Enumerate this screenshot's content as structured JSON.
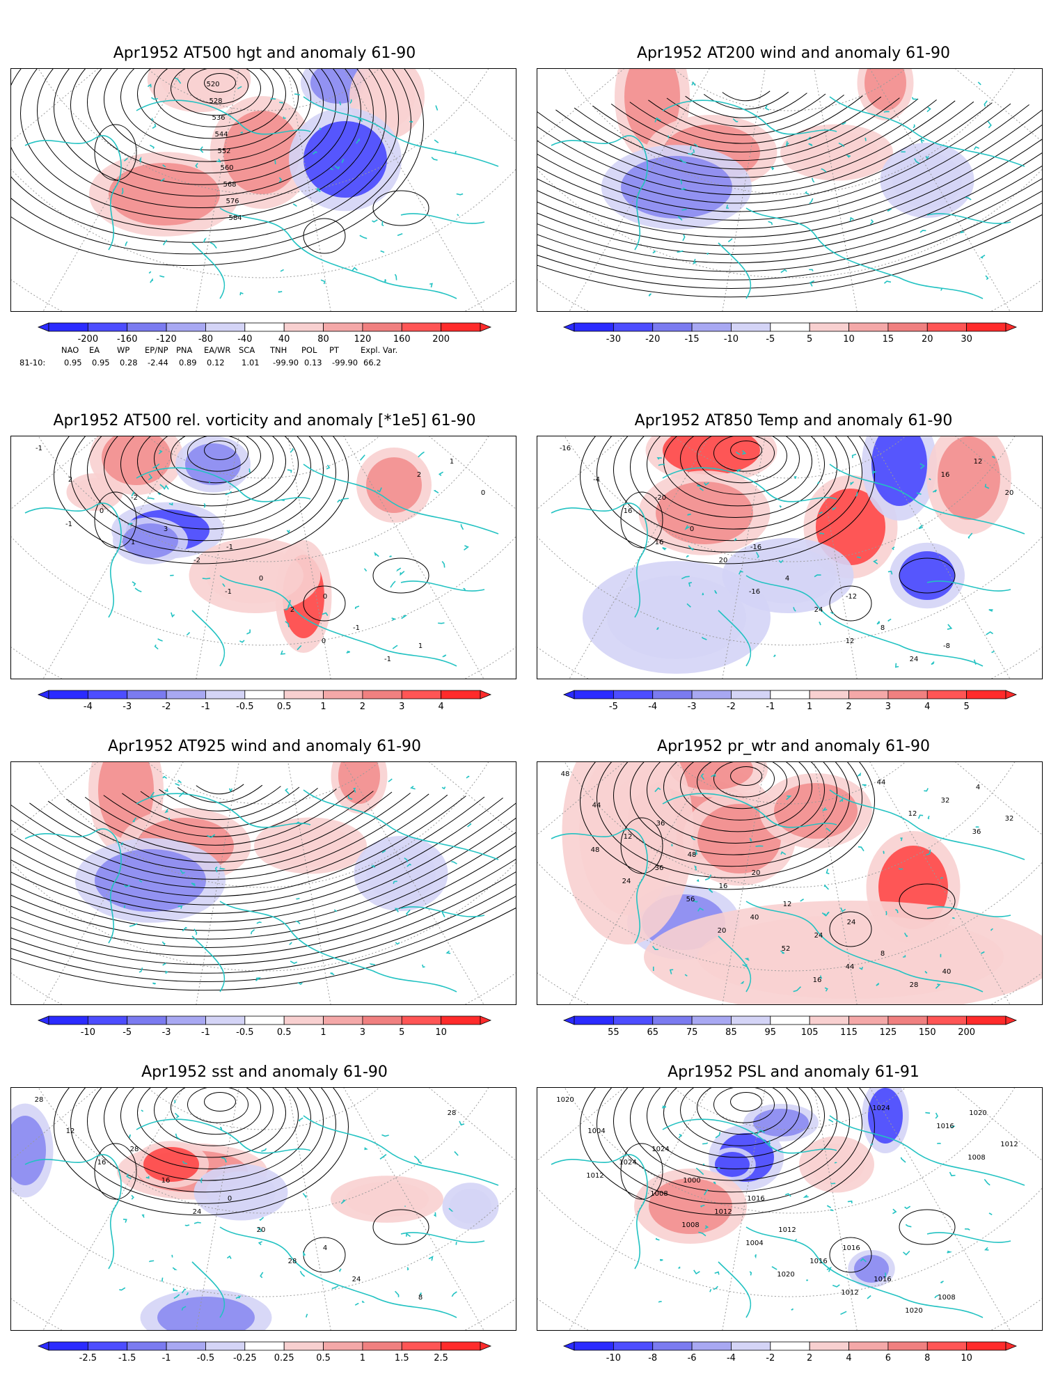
{
  "colors": {
    "coast": "#22c2c2",
    "contour": "#000000",
    "grid": "#9a9a9a",
    "neg_strong": "#2b2bff",
    "neg_mid": "#7b7bf0",
    "neg_light": "#d4d4f6",
    "pos_light": "#f8d0d0",
    "pos_mid": "#f08080",
    "pos_strong": "#ff2b2b"
  },
  "panels": [
    {
      "id": "p1",
      "title": "Apr1952 AT500 hgt and anomaly 61-90",
      "style": "hgt",
      "contour_labels": [
        "520",
        "528",
        "536",
        "544",
        "552",
        "560",
        "568",
        "576",
        "584"
      ],
      "colorbar": [
        "-200",
        "-160",
        "-120",
        "-80",
        "-40",
        "40",
        "80",
        "120",
        "160",
        "200"
      ],
      "teleconnection": {
        "headers": [
          "NAO",
          "EA",
          "WP",
          "EP/NP",
          "PNA",
          "EA/WR",
          "SCA",
          "TNH",
          "POL",
          "PT",
          "Expl. Var."
        ],
        "row_label": "81-10:",
        "values": [
          "0.95",
          "0.95",
          "0.28",
          "-2.44",
          "0.89",
          "0.12",
          "1.01",
          "-99.90",
          "0.13",
          "-99.90",
          "66.2"
        ]
      }
    },
    {
      "id": "p2",
      "title": "Apr1952 AT200 wind and anomaly 61-90",
      "style": "wind",
      "contour_labels": [],
      "colorbar": [
        "-30",
        "-20",
        "-15",
        "-10",
        "-5",
        "5",
        "10",
        "15",
        "20",
        "30"
      ]
    },
    {
      "id": "p3",
      "title": "Apr1952 AT500 rel. vorticity and anomaly [*1e5] 61-90",
      "style": "vort",
      "contour_labels": [
        "-1",
        "-2",
        "-1",
        "0",
        "1",
        "2",
        "3",
        "0",
        "-1",
        "1",
        "0",
        "-2",
        "2",
        "-1",
        "0",
        "1",
        "-1",
        "0",
        "2",
        "-1"
      ],
      "colorbar": [
        "-4",
        "-3",
        "-2",
        "-1",
        "-0.5",
        "0.5",
        "1",
        "2",
        "3",
        "4"
      ]
    },
    {
      "id": "p4",
      "title": "Apr1952 AT850 Temp and anomaly 61-90",
      "style": "temp",
      "contour_labels": [
        "-16",
        "-20",
        "-16",
        "-12",
        "-8",
        "-4",
        "0",
        "4",
        "8",
        "12",
        "16",
        "20",
        "24",
        "24",
        "20",
        "16",
        "-16",
        "12",
        "16"
      ],
      "colorbar": [
        "-5",
        "-4",
        "-3",
        "-2",
        "-1",
        "1",
        "2",
        "3",
        "4",
        "5"
      ]
    },
    {
      "id": "p5",
      "title": "Apr1952 AT925 wind and anomaly 61-90",
      "style": "wind",
      "contour_labels": [],
      "colorbar": [
        "-10",
        "-5",
        "-3",
        "-1",
        "-0.5",
        "0.5",
        "1",
        "3",
        "5",
        "10"
      ]
    },
    {
      "id": "p6",
      "title": "Apr1952 pr_wtr and anomaly 61-90",
      "style": "prwtr",
      "contour_labels": [
        "48",
        "36",
        "20",
        "24",
        "40",
        "44",
        "48",
        "12",
        "8",
        "4",
        "12",
        "16",
        "24",
        "28",
        "32",
        "36",
        "40",
        "44",
        "32",
        "48",
        "56",
        "52",
        "44",
        "36",
        "24",
        "20",
        "16",
        "12"
      ],
      "colorbar": [
        "55",
        "65",
        "75",
        "85",
        "95",
        "105",
        "115",
        "125",
        "150",
        "200"
      ]
    },
    {
      "id": "p7",
      "title": "Apr1952 sst and anomaly 61-90",
      "style": "sst",
      "contour_labels": [
        "28",
        "28",
        "0",
        "4",
        "8",
        "12",
        "16",
        "20",
        "24",
        "28",
        "16",
        "24",
        "28"
      ],
      "colorbar": [
        "-2.5",
        "-1.5",
        "-1",
        "-0.5",
        "-0.25",
        "0.25",
        "0.5",
        "1",
        "1.5",
        "2.5"
      ]
    },
    {
      "id": "p8",
      "title": "Apr1952 PSL and anomaly 61-91",
      "style": "psl",
      "contour_labels": [
        "1020",
        "1024",
        "1016",
        "1016",
        "1008",
        "1004",
        "1000",
        "1012",
        "1016",
        "1020",
        "1024",
        "1012",
        "1016",
        "1020",
        "1012",
        "1008",
        "1004",
        "1012",
        "1016",
        "1012",
        "1008",
        "1020",
        "1024",
        "1008"
      ],
      "colorbar": [
        "-10",
        "-8",
        "-6",
        "-4",
        "-2",
        "2",
        "4",
        "6",
        "8",
        "10"
      ]
    }
  ]
}
